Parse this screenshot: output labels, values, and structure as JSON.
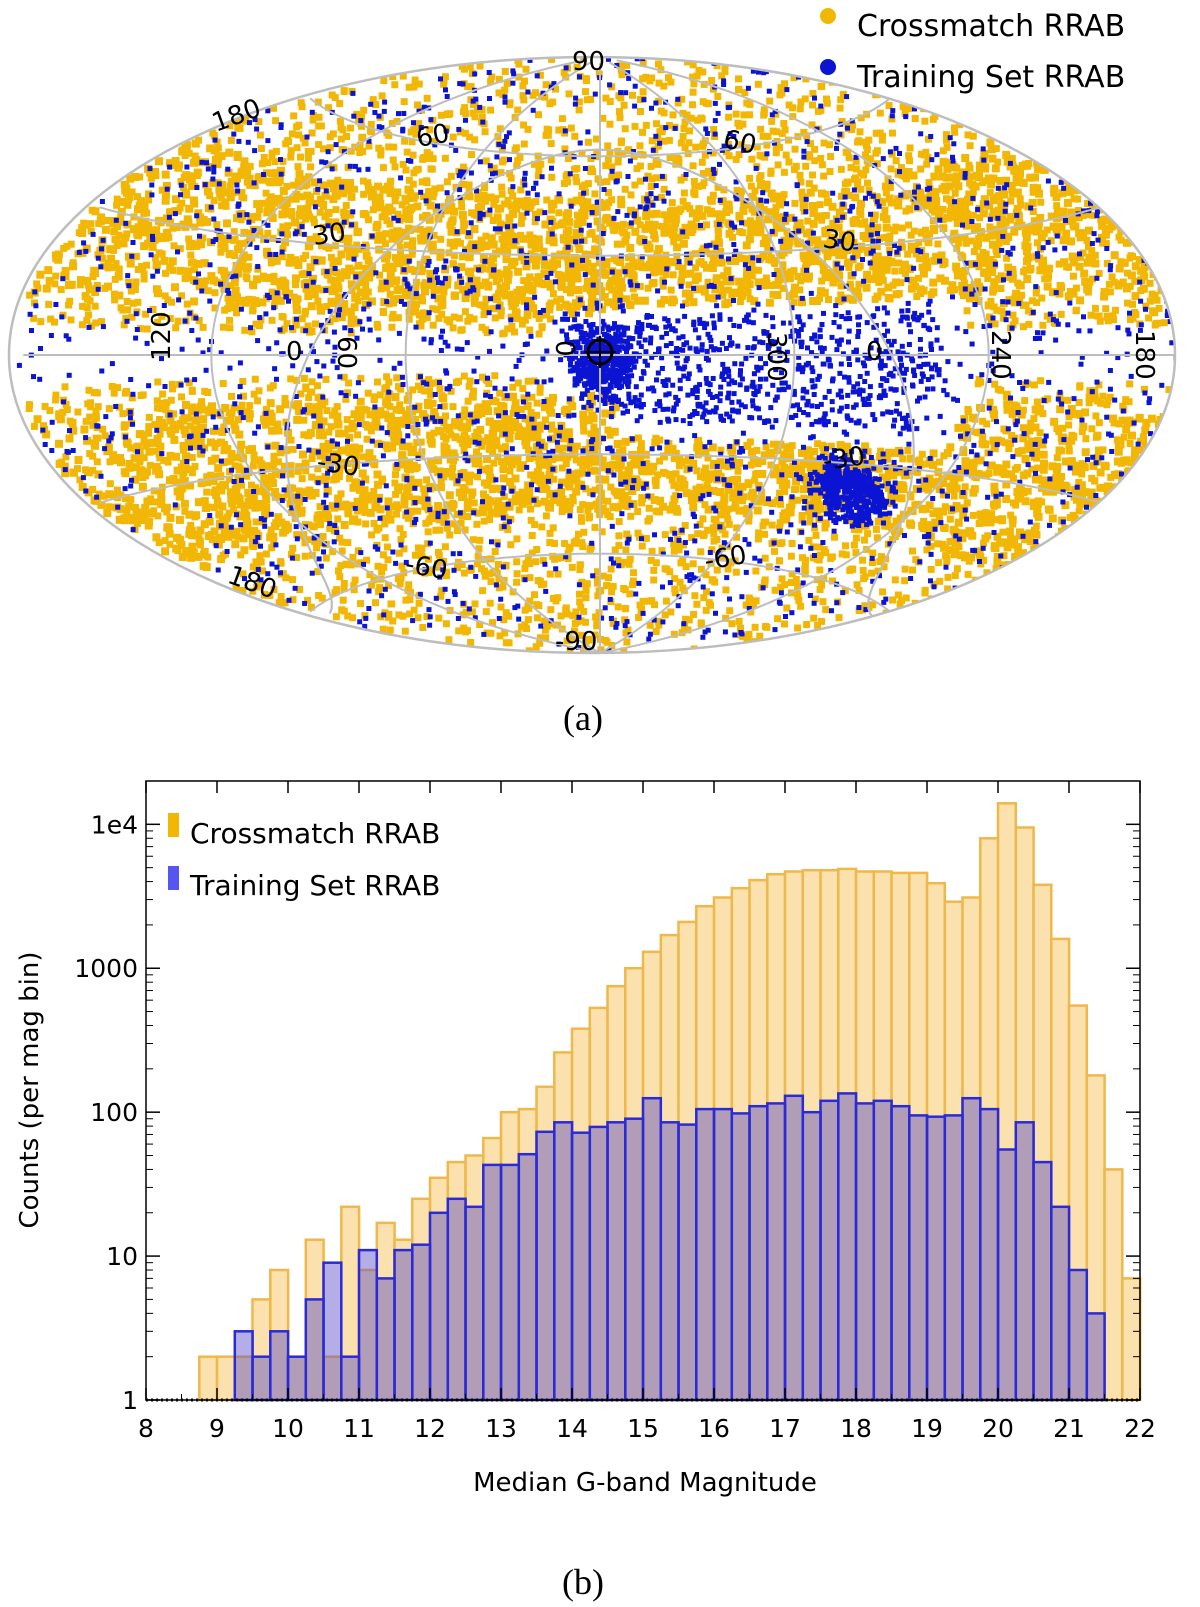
{
  "chart_data": [
    {
      "type": "scatter",
      "projection": "Aitoff all-sky, galactic coordinates",
      "panel_label": "(a)",
      "legend": [
        {
          "label": "Crossmatch RRAB",
          "color": "#f2b705"
        },
        {
          "label": "Training Set RRAB",
          "color": "#0a14d2"
        }
      ],
      "grid_labels": {
        "latitude": [
          "90",
          "60",
          "30",
          "0",
          "-30",
          "-60",
          "-90"
        ],
        "longitude": [
          "180",
          "120",
          "60",
          "0",
          "300",
          "240"
        ],
        "equatorial_grid_labels": [
          "180",
          "60",
          "30",
          "0",
          "-30",
          "-60",
          "180"
        ]
      },
      "series": [
        {
          "name": "Crossmatch RRAB",
          "density": "dense everywhere except near galactic plane toward the bulge and the Magellanic Cloud region"
        },
        {
          "name": "Training Set RRAB",
          "density": "sparse all-sky; dense clusters at galactic center and LMC"
        }
      ]
    },
    {
      "type": "bar",
      "panel_label": "(b)",
      "xlabel": "Median G-band Magnitude",
      "ylabel": "Counts (per mag bin)",
      "xlim": [
        8,
        22
      ],
      "ylim": [
        1,
        20000
      ],
      "yscale": "log",
      "x_ticks": [
        "8",
        "9",
        "10",
        "11",
        "12",
        "13",
        "14",
        "15",
        "16",
        "17",
        "18",
        "19",
        "20",
        "21",
        "22"
      ],
      "y_ticks": [
        {
          "value": 1,
          "label": "1"
        },
        {
          "value": 10,
          "label": "10"
        },
        {
          "value": 100,
          "label": "100"
        },
        {
          "value": 1000,
          "label": "1000"
        },
        {
          "value": 10000,
          "label": "1e4"
        }
      ],
      "bin_width": 0.25,
      "bin_start": 8.75,
      "legend": [
        {
          "label": "Crossmatch RRAB",
          "color": "#f2b705"
        },
        {
          "label": "Training Set RRAB",
          "color": "#3737ee"
        }
      ],
      "series": [
        {
          "name": "Crossmatch RRAB",
          "values": [
            2,
            2,
            2,
            5,
            8,
            2,
            13,
            2,
            22,
            8,
            17,
            13,
            25,
            35,
            45,
            50,
            66,
            100,
            105,
            150,
            260,
            380,
            530,
            750,
            1000,
            1300,
            1700,
            2100,
            2700,
            3100,
            3600,
            4100,
            4500,
            4700,
            4800,
            4800,
            4900,
            4700,
            4700,
            4600,
            4600,
            3900,
            2900,
            3100,
            8000,
            14000,
            9500,
            3800,
            1600,
            550,
            180,
            40,
            7
          ]
        },
        {
          "name": "Training Set RRAB",
          "values": [
            0,
            0,
            3,
            2,
            3,
            2,
            5,
            9,
            2,
            11,
            7,
            11,
            12,
            20,
            25,
            22,
            43,
            43,
            51,
            73,
            85,
            72,
            79,
            85,
            90,
            125,
            85,
            82,
            105,
            105,
            98,
            110,
            115,
            130,
            100,
            120,
            135,
            115,
            120,
            110,
            95,
            93,
            95,
            125,
            105,
            55,
            85,
            45,
            22,
            8,
            4,
            0,
            0
          ]
        }
      ]
    }
  ]
}
